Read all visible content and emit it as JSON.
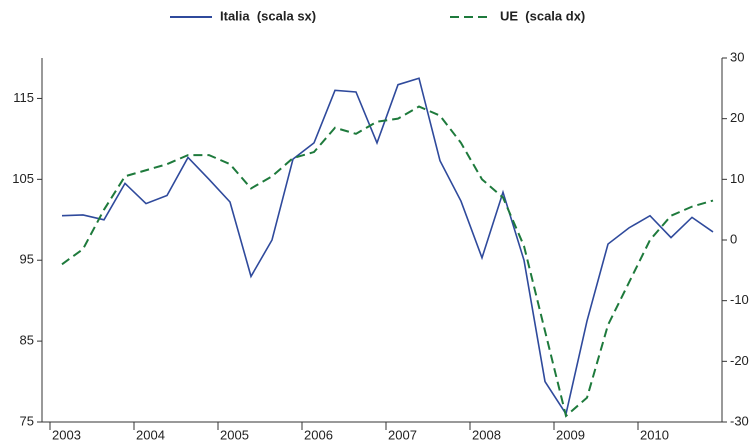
{
  "chart_data": {
    "type": "line",
    "categories": [
      "2003",
      null,
      null,
      null,
      "2004",
      null,
      null,
      null,
      "2005",
      null,
      null,
      null,
      "2006",
      null,
      null,
      null,
      "2007",
      null,
      null,
      null,
      "2008",
      null,
      null,
      null,
      "2009",
      null,
      null,
      null,
      "2010",
      null,
      null,
      null
    ],
    "series": [
      {
        "name": "Italia  (scala sx)",
        "color": "#2f4a9c",
        "dashed": false,
        "values": [
          100.5,
          100.6,
          100,
          104.5,
          102,
          103,
          107.7,
          105,
          102.2,
          93,
          97.5,
          107.5,
          109.5,
          116,
          115.8,
          109.5,
          116.7,
          117.5,
          107.3,
          102.3,
          95.3,
          103.4,
          95,
          80,
          76,
          87.5,
          97,
          99,
          100.5,
          97.8,
          100.3,
          98.5
        ]
      },
      {
        "name": "UE  (scala dx)",
        "color": "#1e7a3c",
        "dashed": true,
        "axis": "y2",
        "values": [
          -4,
          -1.5,
          5,
          10.5,
          11.5,
          12.5,
          14,
          14,
          12.5,
          8.5,
          10.5,
          13.5,
          14.5,
          18.5,
          17.5,
          19.5,
          20,
          22,
          20.5,
          16,
          10,
          7,
          -1,
          -15,
          -29,
          -26,
          -14,
          -7,
          0,
          4,
          5.5,
          6.5
        ]
      }
    ],
    "ylim": [
      75,
      120
    ],
    "yticks": [
      75,
      85,
      95,
      105,
      115
    ],
    "y2lim": [
      -30,
      30
    ],
    "y2ticks": [
      -30,
      -20,
      -10,
      0,
      10,
      20,
      30
    ],
    "legend": "top"
  }
}
